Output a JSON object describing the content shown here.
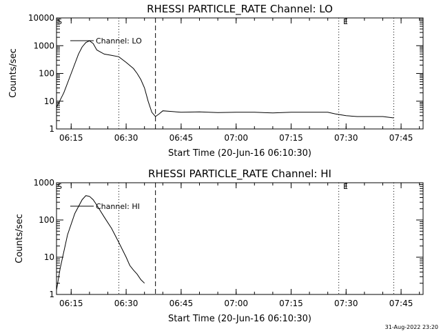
{
  "footer": {
    "timestamp": "31-Aug-2022 23:20"
  },
  "chart_data": [
    {
      "type": "line",
      "title": "RHESSI PARTICLE_RATE Channel: LO",
      "xlabel": "Start Time (20-Jun-16 06:10:30)",
      "ylabel": "Counts/sec",
      "yscale": "log",
      "ylim": [
        1,
        10000
      ],
      "xlim": [
        "06:11",
        "07:51"
      ],
      "x_ticks": [
        "06:15",
        "06:30",
        "06:45",
        "07:00",
        "07:15",
        "07:30",
        "07:45"
      ],
      "y_ticks": [
        "1",
        "10",
        "100",
        "1000",
        "10000"
      ],
      "legend": {
        "entries": [
          "Channel: LO"
        ],
        "placement": "top-left"
      },
      "markers": [
        {
          "label": "S",
          "time": "06:11"
        },
        {
          "label": "E",
          "time": "07:29"
        }
      ],
      "vlines": [
        {
          "time": "06:28",
          "style": "dotted"
        },
        {
          "time": "06:38",
          "style": "dashed"
        },
        {
          "time": "07:28",
          "style": "dotted"
        },
        {
          "time": "07:43",
          "style": "dotted"
        }
      ],
      "series": [
        {
          "name": "Channel: LO",
          "x": [
            "06:11",
            "06:13",
            "06:15",
            "06:17",
            "06:18",
            "06:19",
            "06:20",
            "06:21",
            "06:22",
            "06:24",
            "06:26",
            "06:28",
            "06:30",
            "06:32",
            "06:33",
            "06:34",
            "06:35",
            "06:36",
            "06:37",
            "06:38",
            "06:39",
            "06:40",
            "06:42",
            "06:45",
            "06:50",
            "06:55",
            "07:00",
            "07:05",
            "07:10",
            "07:15",
            "07:20",
            "07:25",
            "07:27",
            "07:30",
            "07:33",
            "07:35",
            "07:40",
            "07:43"
          ],
          "y": [
            6,
            20,
            100,
            500,
            900,
            1300,
            1500,
            1200,
            700,
            500,
            450,
            400,
            250,
            150,
            100,
            60,
            30,
            10,
            4,
            2.8,
            3.5,
            4.5,
            4.3,
            4.0,
            4.1,
            3.9,
            4.0,
            4.0,
            3.8,
            4.0,
            4.0,
            4.0,
            3.5,
            3.0,
            2.8,
            2.8,
            2.8,
            2.5
          ]
        }
      ]
    },
    {
      "type": "line",
      "title": "RHESSI PARTICLE_RATE Channel: HI",
      "xlabel": "Start Time (20-Jun-16 06:10:30)",
      "ylabel": "Counts/sec",
      "yscale": "log",
      "ylim": [
        1,
        1000
      ],
      "xlim": [
        "06:11",
        "07:51"
      ],
      "x_ticks": [
        "06:15",
        "06:30",
        "06:45",
        "07:00",
        "07:15",
        "07:30",
        "07:45"
      ],
      "y_ticks": [
        "1",
        "10",
        "100",
        "1000"
      ],
      "legend": {
        "entries": [
          "Channel: HI"
        ],
        "placement": "top-left"
      },
      "markers": [
        {
          "label": "S",
          "time": "06:11"
        },
        {
          "label": "E",
          "time": "07:29"
        }
      ],
      "vlines": [
        {
          "time": "06:28",
          "style": "dotted"
        },
        {
          "time": "06:38",
          "style": "dashed"
        },
        {
          "time": "07:28",
          "style": "dotted"
        },
        {
          "time": "07:43",
          "style": "dotted"
        }
      ],
      "series": [
        {
          "name": "Channel: HI",
          "x": [
            "06:11",
            "06:12",
            "06:14",
            "06:16",
            "06:18",
            "06:19",
            "06:20",
            "06:21",
            "06:22",
            "06:24",
            "06:26",
            "06:28",
            "06:30",
            "06:31",
            "06:32",
            "06:33",
            "06:34",
            "06:35"
          ],
          "y": [
            1.3,
            5,
            40,
            150,
            350,
            450,
            430,
            350,
            250,
            120,
            60,
            25,
            10,
            6,
            4.5,
            3.5,
            2.5,
            2
          ]
        }
      ]
    }
  ]
}
